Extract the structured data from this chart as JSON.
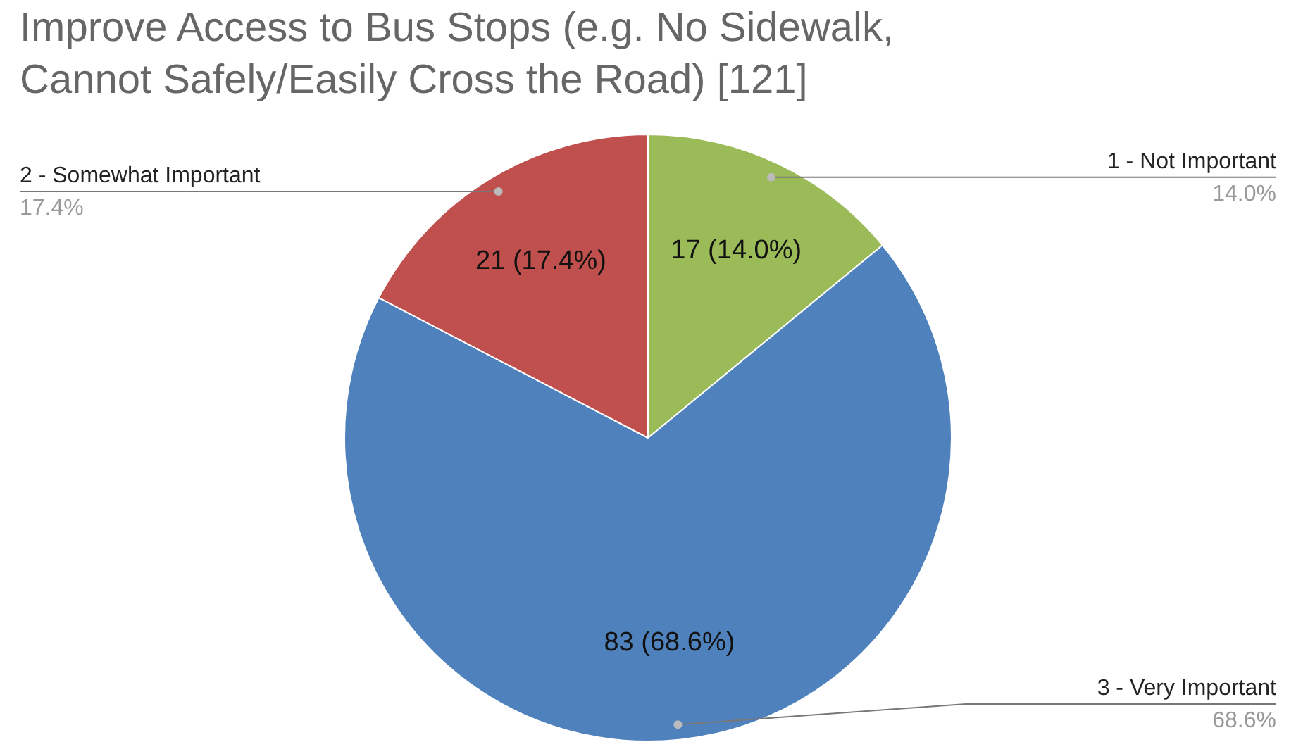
{
  "chart_data": {
    "type": "pie",
    "title": "Improve Access to Bus Stops (e.g. No Sidewalk, Cannot Safely/Easily Cross the Road) [121]",
    "categories": [
      "1 - Not Important",
      "3 - Very Important",
      "2 - Somewhat Important"
    ],
    "values": [
      17,
      83,
      21
    ],
    "colors": [
      "#9bbb59",
      "#4f81bd",
      "#c0504d"
    ],
    "value_labels": [
      "17 (14.0%)",
      "83 (68.6%)",
      "21 (17.4%)"
    ],
    "annotations": [
      "14.0%",
      "68.6%",
      "17.4%"
    ]
  }
}
